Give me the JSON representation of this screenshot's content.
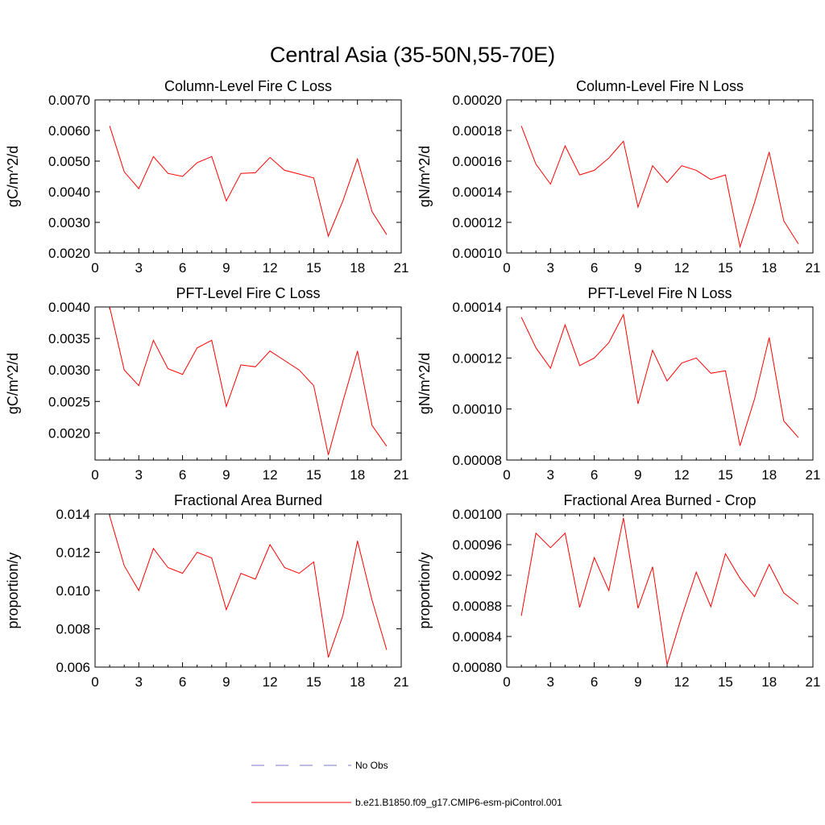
{
  "figure": {
    "title": "Central Asia (35-50N,55-70E)"
  },
  "legend": {
    "items": [
      {
        "label": "No Obs",
        "color": "#7a7ac8",
        "style": "dashed"
      },
      {
        "label": "b.e21.B1850.f09_g17.CMIP6-esm-piControl.001",
        "color": "#ff0000",
        "style": "solid"
      }
    ]
  },
  "chart_data": [
    {
      "type": "line",
      "title": "Column-Level Fire C Loss",
      "ylabel": "gC/m^2/d",
      "xlabel": "",
      "xlim": [
        0,
        21
      ],
      "ylim": [
        0.002,
        0.007
      ],
      "xticks": [
        0,
        3,
        6,
        9,
        12,
        15,
        18,
        21
      ],
      "xtick_labels": [
        "0",
        "3",
        "6",
        "9",
        "12",
        "15",
        "18",
        "21"
      ],
      "yticks": [
        0.002,
        0.003,
        0.004,
        0.005,
        0.006,
        0.007
      ],
      "ytick_labels": [
        "0.0020",
        "0.0030",
        "0.0040",
        "0.0050",
        "0.0060",
        "0.0070"
      ],
      "x": [
        1,
        2,
        3,
        4,
        5,
        6,
        7,
        8,
        9,
        10,
        11,
        12,
        13,
        14,
        15,
        16,
        17,
        18,
        19,
        20
      ],
      "series": [
        {
          "name": "b.e21.B1850.f09_g17.CMIP6-esm-piControl.001",
          "color": "#ff0000",
          "values": [
            0.00615,
            0.00465,
            0.0041,
            0.00515,
            0.0046,
            0.0045,
            0.00495,
            0.00515,
            0.0037,
            0.0046,
            0.00462,
            0.00512,
            0.0047,
            0.00458,
            0.00445,
            0.00255,
            0.0037,
            0.00507,
            0.00335,
            0.0026
          ]
        }
      ]
    },
    {
      "type": "line",
      "title": "Column-Level Fire N Loss",
      "ylabel": "gN/m^2/d",
      "xlabel": "",
      "xlim": [
        0,
        21
      ],
      "ylim": [
        0.0001,
        0.0002
      ],
      "xticks": [
        0,
        3,
        6,
        9,
        12,
        15,
        18,
        21
      ],
      "xtick_labels": [
        "0",
        "3",
        "6",
        "9",
        "12",
        "15",
        "18",
        "21"
      ],
      "yticks": [
        0.0001,
        0.00012,
        0.00014,
        0.00016,
        0.00018,
        0.0002
      ],
      "ytick_labels": [
        "0.00010",
        "0.00012",
        "0.00014",
        "0.00016",
        "0.00018",
        "0.00020"
      ],
      "x": [
        1,
        2,
        3,
        4,
        5,
        6,
        7,
        8,
        9,
        10,
        11,
        12,
        13,
        14,
        15,
        16,
        17,
        18,
        19,
        20
      ],
      "series": [
        {
          "name": "b.e21.B1850.f09_g17.CMIP6-esm-piControl.001",
          "color": "#ff0000",
          "values": [
            0.000183,
            0.000158,
            0.000145,
            0.00017,
            0.000151,
            0.000154,
            0.000162,
            0.000173,
            0.00013,
            0.000157,
            0.000146,
            0.000157,
            0.000154,
            0.000148,
            0.000151,
            0.000104,
            0.000133,
            0.000166,
            0.000121,
            0.000106
          ]
        }
      ]
    },
    {
      "type": "line",
      "title": "PFT-Level Fire C Loss",
      "ylabel": "gC/m^2/d",
      "xlabel": "",
      "xlim": [
        0,
        21
      ],
      "ylim": [
        0.00157,
        0.004
      ],
      "xticks": [
        0,
        3,
        6,
        9,
        12,
        15,
        18,
        21
      ],
      "xtick_labels": [
        "0",
        "3",
        "6",
        "9",
        "12",
        "15",
        "18",
        "21"
      ],
      "yticks": [
        0.002,
        0.0025,
        0.003,
        0.0035,
        0.004
      ],
      "ytick_labels": [
        "0.0020",
        "0.0025",
        "0.0030",
        "0.0035",
        "0.0040"
      ],
      "x": [
        1,
        2,
        3,
        4,
        5,
        6,
        7,
        8,
        9,
        10,
        11,
        12,
        13,
        14,
        15,
        16,
        17,
        18,
        19,
        20
      ],
      "series": [
        {
          "name": "b.e21.B1850.f09_g17.CMIP6-esm-piControl.001",
          "color": "#ff0000",
          "values": [
            0.004,
            0.003,
            0.00275,
            0.00347,
            0.00302,
            0.00293,
            0.00335,
            0.00347,
            0.00242,
            0.00308,
            0.00305,
            0.0033,
            0.00315,
            0.003,
            0.00275,
            0.00165,
            0.0025,
            0.0033,
            0.00212,
            0.00179
          ]
        }
      ]
    },
    {
      "type": "line",
      "title": "PFT-Level Fire N Loss",
      "ylabel": "gN/m^2/d",
      "xlabel": "",
      "xlim": [
        0,
        21
      ],
      "ylim": [
        8e-05,
        0.00014
      ],
      "xticks": [
        0,
        3,
        6,
        9,
        12,
        15,
        18,
        21
      ],
      "xtick_labels": [
        "0",
        "3",
        "6",
        "9",
        "12",
        "15",
        "18",
        "21"
      ],
      "yticks": [
        8e-05,
        0.0001,
        0.00012,
        0.00014
      ],
      "ytick_labels": [
        "0.00008",
        "0.00010",
        "0.00012",
        "0.00014"
      ],
      "x": [
        1,
        2,
        3,
        4,
        5,
        6,
        7,
        8,
        9,
        10,
        11,
        12,
        13,
        14,
        15,
        16,
        17,
        18,
        19,
        20
      ],
      "series": [
        {
          "name": "b.e21.B1850.f09_g17.CMIP6-esm-piControl.001",
          "color": "#ff0000",
          "values": [
            0.000136,
            0.000124,
            0.000116,
            0.000133,
            0.000117,
            0.00012,
            0.000126,
            0.000137,
            0.000102,
            0.000123,
            0.000111,
            0.000118,
            0.00012,
            0.000114,
            0.000115,
            8.56e-05,
            0.000104,
            0.000128,
            9.53e-05,
            8.88e-05
          ]
        }
      ]
    },
    {
      "type": "line",
      "title": "Fractional Area Burned",
      "ylabel": "proportion/y",
      "xlabel": "",
      "xlim": [
        0,
        21
      ],
      "ylim": [
        0.006,
        0.014
      ],
      "xticks": [
        0,
        3,
        6,
        9,
        12,
        15,
        18,
        21
      ],
      "xtick_labels": [
        "0",
        "3",
        "6",
        "9",
        "12",
        "15",
        "18",
        "21"
      ],
      "yticks": [
        0.006,
        0.008,
        0.01,
        0.012,
        0.014
      ],
      "ytick_labels": [
        "0.006",
        "0.008",
        "0.010",
        "0.012",
        "0.014"
      ],
      "x": [
        1,
        2,
        3,
        4,
        5,
        6,
        7,
        8,
        9,
        10,
        11,
        12,
        13,
        14,
        15,
        16,
        17,
        18,
        19,
        20
      ],
      "series": [
        {
          "name": "b.e21.B1850.f09_g17.CMIP6-esm-piControl.001",
          "color": "#ff0000",
          "values": [
            0.0139,
            0.0113,
            0.01,
            0.0122,
            0.0112,
            0.0109,
            0.012,
            0.0117,
            0.009,
            0.0109,
            0.0106,
            0.0124,
            0.0112,
            0.0109,
            0.0115,
            0.0065,
            0.0087,
            0.0126,
            0.0095,
            0.0069
          ]
        }
      ]
    },
    {
      "type": "line",
      "title": "Fractional Area Burned - Crop",
      "ylabel": "proportion/y",
      "xlabel": "",
      "xlim": [
        0,
        21
      ],
      "ylim": [
        0.0008,
        0.001
      ],
      "xticks": [
        0,
        3,
        6,
        9,
        12,
        15,
        18,
        21
      ],
      "xtick_labels": [
        "0",
        "3",
        "6",
        "9",
        "12",
        "15",
        "18",
        "21"
      ],
      "yticks": [
        0.0008,
        0.00084,
        0.00088,
        0.00092,
        0.00096,
        0.001
      ],
      "ytick_labels": [
        "0.00080",
        "0.00084",
        "0.00088",
        "0.00092",
        "0.00096",
        "0.00100"
      ],
      "x": [
        1,
        2,
        3,
        4,
        5,
        6,
        7,
        8,
        9,
        10,
        11,
        12,
        13,
        14,
        15,
        16,
        17,
        18,
        19,
        20
      ],
      "series": [
        {
          "name": "b.e21.B1850.f09_g17.CMIP6-esm-piControl.001",
          "color": "#ff0000",
          "values": [
            0.000867,
            0.000975,
            0.000956,
            0.000975,
            0.000878,
            0.000943,
            0.0009,
            0.000995,
            0.000877,
            0.000931,
            0.000803,
            0.000866,
            0.000924,
            0.000879,
            0.000948,
            0.000916,
            0.000892,
            0.000934,
            0.000897,
            0.000882
          ]
        }
      ]
    }
  ]
}
